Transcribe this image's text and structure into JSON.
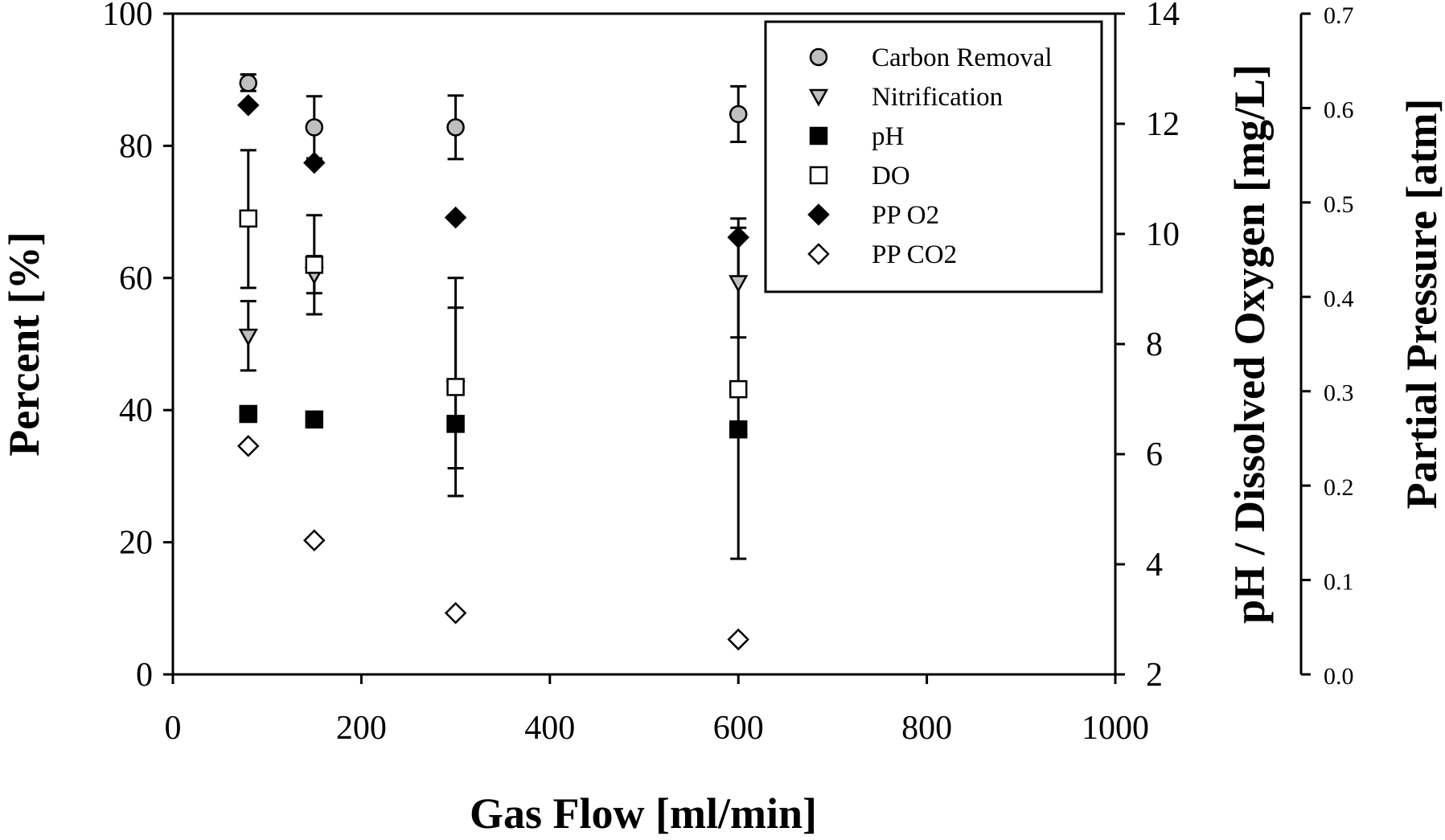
{
  "chart_data": {
    "type": "scatter",
    "title": "",
    "xlabel": "Gas Flow [ml/min]",
    "ylabel": "Percent [%]",
    "y2label": "pH / Dissolved Oxygen [mg/L]",
    "y3label": "Partial Pressure [atm]",
    "xlim": [
      0,
      1000
    ],
    "ylim": [
      0,
      100
    ],
    "y2lim": [
      2,
      14
    ],
    "y3lim": [
      0,
      0.7
    ],
    "xticks": [
      "0",
      "200",
      "400",
      "600",
      "800",
      "1000"
    ],
    "yticks": [
      "0",
      "20",
      "40",
      "60",
      "80",
      "100"
    ],
    "y2ticks": [
      "2",
      "4",
      "6",
      "8",
      "10",
      "12",
      "14"
    ],
    "y3ticks": [
      "0.0",
      "0.1",
      "0.2",
      "0.3",
      "0.4",
      "0.5",
      "0.6",
      "0.7"
    ],
    "grid": false,
    "legend_position": "top-right",
    "series": [
      {
        "name": "Carbon Removal",
        "axis": "left",
        "marker": "circle",
        "fill": "#bfbfbf",
        "x": [
          80,
          150,
          300,
          600
        ],
        "y": [
          89.5,
          82.8,
          82.8,
          84.8
        ],
        "err_low": [
          88.3,
          78.1,
          78.0,
          80.6
        ],
        "err_high": [
          90.8,
          87.5,
          87.6,
          89.0
        ]
      },
      {
        "name": "Nitrification",
        "axis": "left",
        "marker": "triangle-down",
        "fill": "#bfbfbf",
        "x": [
          80,
          150,
          300,
          600
        ],
        "y": [
          51.2,
          60.5,
          43.3,
          59.3
        ],
        "err_low": [
          46.0,
          57.7,
          31.2,
          51.0
        ],
        "err_high": [
          56.5,
          63.3,
          55.5,
          67.6
        ]
      },
      {
        "name": "pH",
        "axis": "right1",
        "marker": "square",
        "fill": "#000000",
        "x": [
          80,
          150,
          300,
          600
        ],
        "y": [
          6.73,
          6.63,
          6.55,
          6.45
        ]
      },
      {
        "name": "DO",
        "axis": "right1",
        "marker": "square",
        "fill": "#ffffff",
        "x": [
          80,
          150,
          300,
          600
        ],
        "y": [
          10.28,
          9.44,
          7.22,
          7.18
        ],
        "err_low": [
          9.02,
          8.54,
          5.24,
          4.1
        ],
        "err_high": [
          11.52,
          10.34,
          9.2,
          10.28
        ]
      },
      {
        "name": "PP O2",
        "axis": "right2",
        "marker": "diamond",
        "fill": "#000000",
        "x": [
          80,
          150,
          300,
          600
        ],
        "y": [
          0.603,
          0.542,
          0.484,
          0.463
        ]
      },
      {
        "name": "PP CO2",
        "axis": "right2",
        "marker": "diamond",
        "fill": "#ffffff",
        "x": [
          80,
          150,
          300,
          600
        ],
        "y": [
          0.242,
          0.142,
          0.065,
          0.037
        ]
      }
    ]
  }
}
